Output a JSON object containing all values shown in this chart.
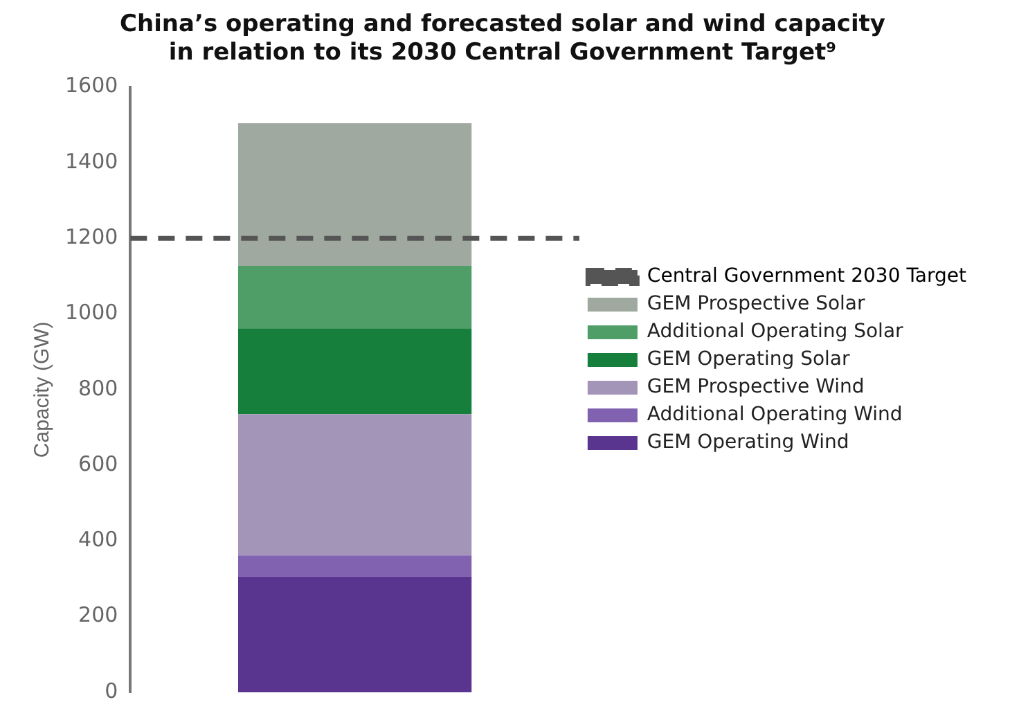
{
  "chart_data": {
    "type": "bar",
    "title": "China’s operating and forecasted solar and wind capacity in relation to its 2030 Central Government Target⁹",
    "ylabel": "Capacity (GW)",
    "categories": [
      null
    ],
    "stacked": true,
    "ylim": [
      0,
      1600
    ],
    "yticks": [
      0,
      200,
      400,
      600,
      800,
      1000,
      1200,
      1400,
      1600
    ],
    "grid": false,
    "legend": "right",
    "tick_labels": "y",
    "series": [
      {
        "name": "GEM Operating Wind",
        "color": "#5a3590",
        "values": [
          306
        ]
      },
      {
        "name": "Additional Operating Wind",
        "color": "#8062b0",
        "values": [
          56
        ]
      },
      {
        "name": "GEM Prospective Wind",
        "color": "#a395b8",
        "values": [
          373
        ]
      },
      {
        "name": "GEM Operating Solar",
        "color": "#157f3b",
        "values": [
          227
        ]
      },
      {
        "name": "Additional Operating Solar",
        "color": "#4f9d67",
        "values": [
          165
        ]
      },
      {
        "name": "GEM Prospective Solar",
        "color": "#a0a9a0",
        "values": [
          377
        ]
      }
    ],
    "ref_lines": [
      {
        "axis": "y",
        "value": 1200,
        "label": "Central Government 2030 Target",
        "color": "#555555",
        "line_style": "dashed"
      }
    ]
  }
}
